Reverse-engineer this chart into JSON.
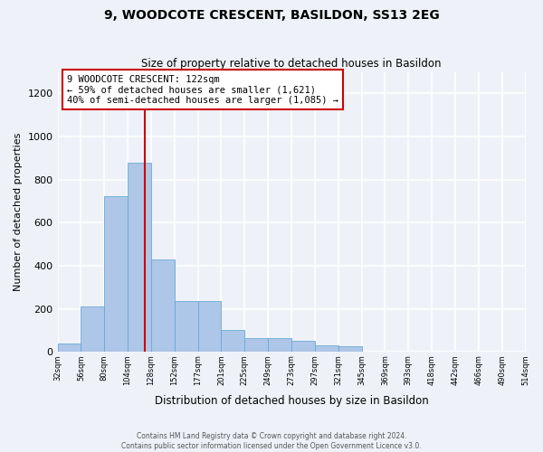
{
  "title": "9, WOODCOTE CRESCENT, BASILDON, SS13 2EG",
  "subtitle": "Size of property relative to detached houses in Basildon",
  "xlabel": "Distribution of detached houses by size in Basildon",
  "ylabel": "Number of detached properties",
  "footer_line1": "Contains HM Land Registry data © Crown copyright and database right 2024.",
  "footer_line2": "Contains public sector information licensed under the Open Government Licence v3.0.",
  "bar_color": "#aec6e8",
  "bar_edge_color": "#6aaad4",
  "background_color": "#eef2f8",
  "grid_color": "#ffffff",
  "property_line_color": "#cc0000",
  "property_line_x": 122,
  "annotation_text": "9 WOODCOTE CRESCENT: 122sqm\n← 59% of detached houses are smaller (1,621)\n40% of semi-detached houses are larger (1,085) →",
  "annotation_box_color": "#ffffff",
  "annotation_box_edge": "#cc0000",
  "bins": [
    32,
    56,
    80,
    104,
    128,
    152,
    177,
    201,
    225,
    249,
    273,
    297,
    321,
    345,
    369,
    393,
    418,
    442,
    466,
    490,
    514
  ],
  "bin_labels": [
    "32sqm",
    "56sqm",
    "80sqm",
    "104sqm",
    "128sqm",
    "152sqm",
    "177sqm",
    "201sqm",
    "225sqm",
    "249sqm",
    "273sqm",
    "297sqm",
    "321sqm",
    "345sqm",
    "369sqm",
    "393sqm",
    "418sqm",
    "442sqm",
    "466sqm",
    "490sqm",
    "514sqm"
  ],
  "counts": [
    40,
    210,
    725,
    880,
    430,
    235,
    235,
    100,
    65,
    65,
    50,
    30,
    25,
    0,
    0,
    0,
    0,
    0,
    0,
    0
  ],
  "ylim": [
    0,
    1300
  ],
  "yticks": [
    0,
    200,
    400,
    600,
    800,
    1000,
    1200
  ]
}
